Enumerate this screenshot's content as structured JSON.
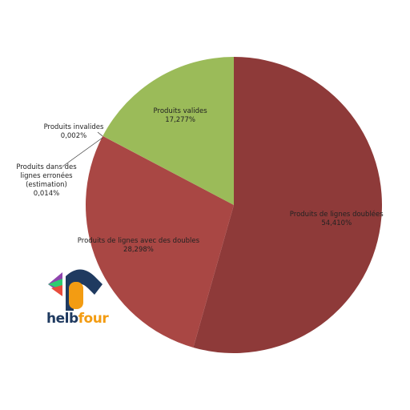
{
  "chart_data": {
    "type": "pie",
    "categories": [
      "Produits de lignes doublées",
      "Produits de lignes avec des doubles",
      "Produits dans des lignes erronées (estimation)",
      "Produits invalides",
      "Produits valides"
    ],
    "values": [
      54.41,
      28.298,
      0.014,
      0.002,
      17.277
    ],
    "value_labels": [
      "54,410%",
      "28,298%",
      "0,014%",
      "0,002%",
      "17,277%"
    ],
    "colors": [
      "#8e3a39",
      "#a94744",
      "#c0504d",
      "#4f81bd",
      "#9bbb59"
    ]
  },
  "logo": {
    "text_a": "helb",
    "text_b": "four"
  }
}
